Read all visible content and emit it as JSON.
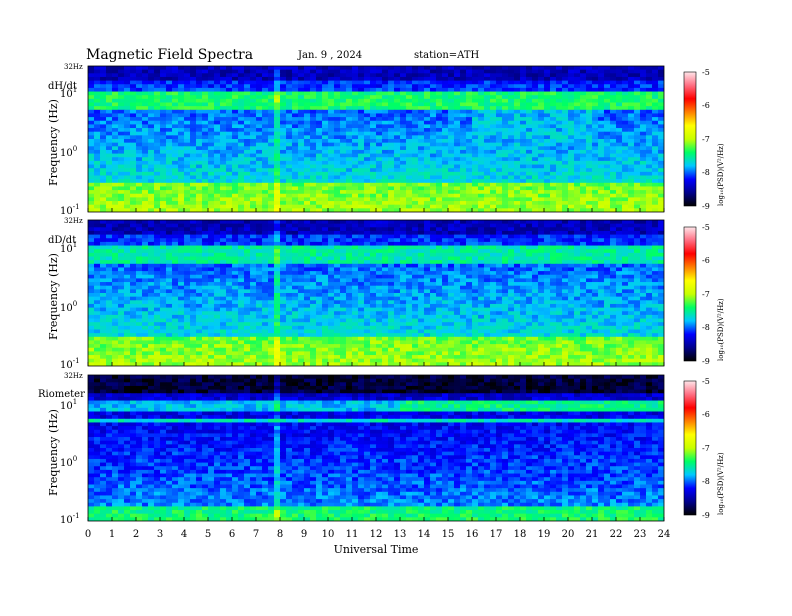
{
  "header": {
    "title": "Magnetic  Field  Spectra",
    "date": "Jan.  9  ,  2024",
    "station": "station=ATH"
  },
  "colors": {
    "colormap": [
      "#000000",
      "#00008c",
      "#0000ff",
      "#00c8ff",
      "#00ff64",
      "#c8ff00",
      "#ffff00",
      "#ff8000",
      "#ff0000",
      "#ff6e82",
      "#ffe6ea"
    ]
  },
  "chart_data": {
    "type": "heatmap",
    "xlabel": "Universal Time",
    "x_ticks": [
      "0",
      "1",
      "2",
      "3",
      "4",
      "5",
      "6",
      "7",
      "8",
      "9",
      "10",
      "11",
      "12",
      "13",
      "14",
      "15",
      "16",
      "17",
      "18",
      "19",
      "20",
      "21",
      "22",
      "23",
      "24"
    ],
    "xlim": [
      0,
      24
    ],
    "panels": [
      {
        "label": "dH/dt",
        "ylabel": "Frequency (Hz)",
        "top_tick": "32Hz",
        "y_ticks": [
          {
            "value": 10,
            "base": "10",
            "exp": "1"
          },
          {
            "value": 1,
            "base": "10",
            "exp": "0"
          },
          {
            "value": 0.1,
            "base": "10",
            "exp": "-1"
          }
        ],
        "ylim": [
          0.1,
          32
        ],
        "yscale": "log",
        "colorbar": {
          "label": "log₁₀(PSD)(V²/Hz)",
          "ticks": [
            "-5",
            "-6",
            "-7",
            "-8",
            "-9"
          ],
          "range": [
            -9,
            -5
          ]
        }
      },
      {
        "label": "dD/dt",
        "ylabel": "Frequency (Hz)",
        "top_tick": "32Hz",
        "y_ticks": [
          {
            "value": 10,
            "base": "10",
            "exp": "1"
          },
          {
            "value": 1,
            "base": "10",
            "exp": "0"
          },
          {
            "value": 0.1,
            "base": "10",
            "exp": "-1"
          }
        ],
        "ylim": [
          0.1,
          32
        ],
        "yscale": "log",
        "colorbar": {
          "label": "log₁₀(PSD)(V²/Hz)",
          "ticks": [
            "-5",
            "-6",
            "-7",
            "-8",
            "-9"
          ],
          "range": [
            -9,
            -5
          ]
        }
      },
      {
        "label": "Riometer",
        "ylabel": "Frequency (Hz)",
        "top_tick": "32Hz",
        "y_ticks": [
          {
            "value": 10,
            "base": "10",
            "exp": "1"
          },
          {
            "value": 1,
            "base": "10",
            "exp": "0"
          },
          {
            "value": 0.1,
            "base": "10",
            "exp": "-1"
          }
        ],
        "ylim": [
          0.1,
          32
        ],
        "yscale": "log",
        "colorbar": {
          "label": "log₁₀(PSD)(V²/Hz)",
          "ticks": [
            "-5",
            "-6",
            "-7",
            "-8",
            "-9"
          ],
          "range": [
            -9,
            -5
          ]
        }
      }
    ]
  }
}
